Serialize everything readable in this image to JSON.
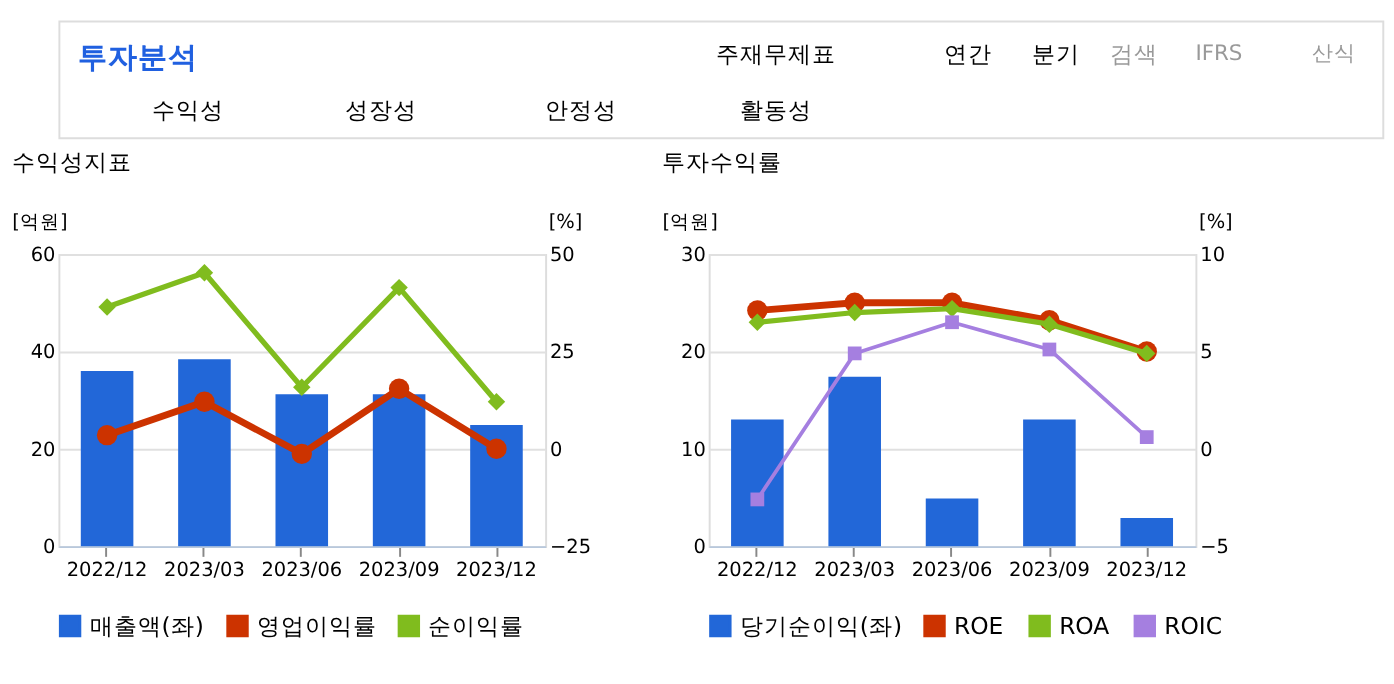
{
  "chart_data": [
    {
      "type": "other",
      "annotations": [
        "투자분석",
        "주재무제표",
        "연간",
        "분기",
        "검색",
        "IFRS",
        "산식",
        "수익성",
        "성장성",
        "안정성",
        "활동성"
      ]
    },
    {
      "type": "bar",
      "title": "수익성지표",
      "ylabel": "[억원]",
      "y2label": "[%]",
      "categories": [
        "2022/12",
        "2023/03",
        "2023/06",
        "2023/09",
        "2023/12"
      ],
      "ylim": [
        0,
        60
      ],
      "yticks": [
        0,
        20,
        40,
        60
      ],
      "y2lim": [
        -25,
        50
      ],
      "y2ticks": [
        -25,
        0,
        25,
        50
      ],
      "grid": "y",
      "legend": "bottom",
      "series": [
        {
          "name": "매출액(좌)",
          "type": "bar",
          "color": "#2267d8",
          "values": [
            36.0,
            38.4,
            31.2,
            31.2,
            24.9
          ]
        },
        {
          "name": "영업이익률",
          "type": "line",
          "axis": "y2",
          "marker": "circle",
          "line_style": "solid",
          "color": "#cc3300",
          "values": [
            3.5,
            12.1,
            -1.3,
            15.4,
            0.0
          ]
        },
        {
          "name": "순이익률",
          "type": "line",
          "axis": "y2",
          "marker": "diamond",
          "line_style": "solid",
          "color": "#80bc1e",
          "values": [
            36.4,
            45.2,
            15.8,
            41.4,
            12.1
          ]
        }
      ]
    },
    {
      "type": "bar",
      "title": "투자수익률",
      "ylabel": "[억원]",
      "y2label": "[%]",
      "categories": [
        "2022/12",
        "2023/03",
        "2023/06",
        "2023/09",
        "2023/12"
      ],
      "ylim": [
        0,
        30
      ],
      "yticks": [
        0,
        10,
        20,
        30
      ],
      "y2lim": [
        -5,
        10
      ],
      "y2ticks": [
        -5,
        0,
        5,
        10
      ],
      "grid": "y",
      "legend": "bottom",
      "series": [
        {
          "name": "당기순이익(좌)",
          "type": "bar",
          "color": "#2267d8",
          "values": [
            13.0,
            17.4,
            4.9,
            13.0,
            2.9
          ]
        },
        {
          "name": "ROE",
          "type": "line",
          "axis": "y2",
          "marker": "circle",
          "line_style": "solid",
          "color": "#cc3300",
          "values": [
            7.1,
            7.5,
            7.5,
            6.6,
            5.0
          ]
        },
        {
          "name": "ROA",
          "type": "line",
          "axis": "y2",
          "marker": "diamond",
          "line_style": "solid",
          "color": "#80bc1e",
          "values": [
            6.5,
            7.0,
            7.2,
            6.4,
            4.9
          ]
        },
        {
          "name": "ROIC",
          "type": "line",
          "axis": "y2",
          "marker": "square",
          "line_style": "solid",
          "color": "#a57fe0",
          "values": [
            -2.6,
            4.9,
            6.5,
            5.1,
            0.6
          ]
        }
      ]
    }
  ]
}
